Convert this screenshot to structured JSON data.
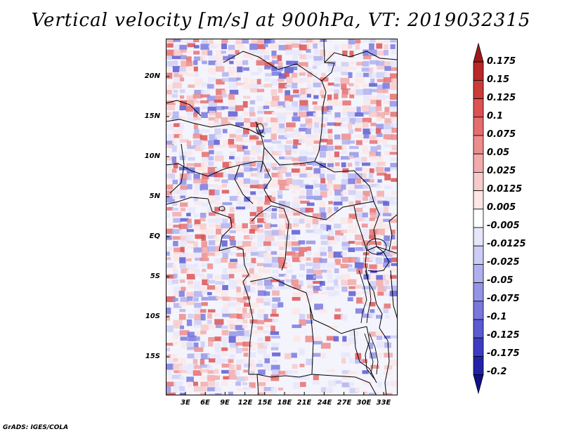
{
  "title": "Vertical velocity [m/s] at 900hPa, VT: 2019032315",
  "credit": "GrADS: IGES/COLA",
  "map": {
    "lat_labels": [
      "20N",
      "15N",
      "10N",
      "5N",
      "EQ",
      "5S",
      "10S",
      "15S"
    ],
    "lon_labels": [
      "3E",
      "6E",
      "9E",
      "12E",
      "15E",
      "18E",
      "21E",
      "24E",
      "27E",
      "30E",
      "33E"
    ]
  },
  "colorbar": {
    "labels": [
      "0.175",
      "0.15",
      "0.125",
      "0.1",
      "0.075",
      "0.05",
      "0.025",
      "0.0125",
      "0.005",
      "-0.005",
      "-0.0125",
      "-0.025",
      "-0.05",
      "-0.075",
      "-0.1",
      "-0.125",
      "-0.175",
      "-0.2"
    ],
    "colors": [
      "#a01818",
      "#b82828",
      "#cc3a3a",
      "#dc5252",
      "#e46e6e",
      "#ec8c8c",
      "#f2aaaa",
      "#f7caca",
      "#fce6e6",
      "#ffffff",
      "#e6e6fa",
      "#ccccf4",
      "#b0b0ee",
      "#9494e6",
      "#7878de",
      "#5a5ad2",
      "#3c3cc2",
      "#2222a8",
      "#10108a"
    ]
  }
}
